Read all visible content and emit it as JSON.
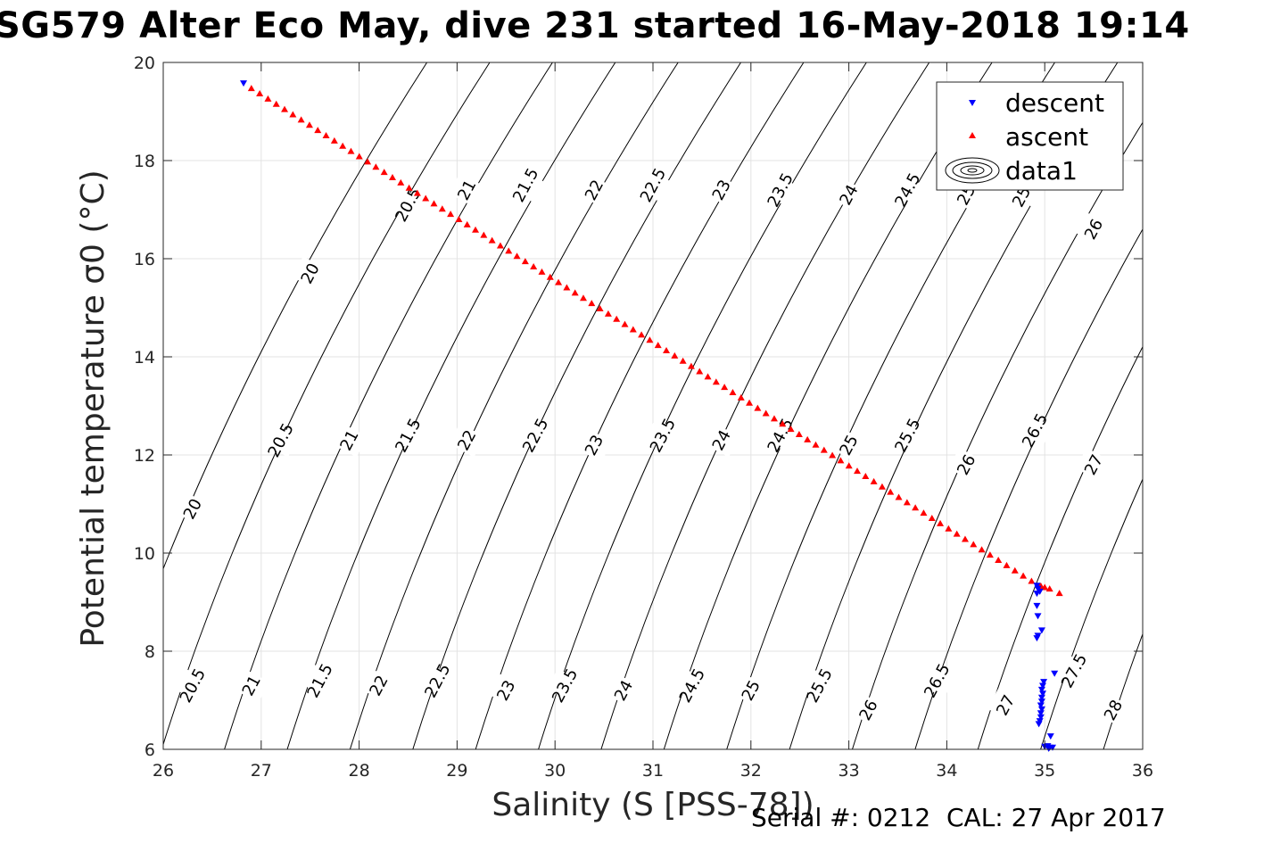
{
  "title": "SG579 Alter Eco May, dive 231 started 16-May-2018 19:14",
  "footer": "Serial #: 0212  CAL: 27 Apr 2017",
  "chart_data": {
    "type": "scatter",
    "title": "SG579 Alter Eco May, dive 231 started 16-May-2018 19:14",
    "xlabel": "Salinity (S [PSS-78])",
    "ylabel": "Potential temperature σ0 (°C)",
    "xlim": [
      26,
      36
    ],
    "ylim": [
      6,
      20
    ],
    "xticks": [
      "26",
      "27",
      "28",
      "29",
      "30",
      "31",
      "32",
      "33",
      "34",
      "35",
      "36"
    ],
    "yticks": [
      "6",
      "8",
      "10",
      "12",
      "14",
      "16",
      "18",
      "20"
    ],
    "grid": true,
    "legend_position": "top-right",
    "legend": [
      "descent",
      "ascent",
      "data1"
    ],
    "contour_levels": [
      20,
      20.5,
      21,
      21.5,
      22,
      22.5,
      23,
      23.5,
      24,
      24.5,
      25,
      25.5,
      26,
      26.5,
      27,
      27.5,
      28
    ],
    "contour_labels": [
      {
        "text": "20",
        "x": 27.5,
        "y": 15.7
      },
      {
        "text": "20.5",
        "x": 28.5,
        "y": 17.1
      },
      {
        "text": "21",
        "x": 29.1,
        "y": 17.4
      },
      {
        "text": "21.5",
        "x": 29.7,
        "y": 17.5
      },
      {
        "text": "22",
        "x": 30.4,
        "y": 17.4
      },
      {
        "text": "22.5",
        "x": 31.0,
        "y": 17.5
      },
      {
        "text": "23",
        "x": 31.7,
        "y": 17.4
      },
      {
        "text": "23.5",
        "x": 32.3,
        "y": 17.4
      },
      {
        "text": "24",
        "x": 33.0,
        "y": 17.3
      },
      {
        "text": "24.5",
        "x": 33.6,
        "y": 17.4
      },
      {
        "text": "25",
        "x": 34.2,
        "y": 17.3
      },
      {
        "text": "25.5",
        "x": 34.8,
        "y": 17.4
      },
      {
        "text": "26",
        "x": 35.5,
        "y": 16.6
      },
      {
        "text": "20",
        "x": 26.3,
        "y": 10.9
      },
      {
        "text": "20.5",
        "x": 27.2,
        "y": 12.3
      },
      {
        "text": "21",
        "x": 27.9,
        "y": 12.3
      },
      {
        "text": "21.5",
        "x": 28.5,
        "y": 12.4
      },
      {
        "text": "22",
        "x": 29.1,
        "y": 12.3
      },
      {
        "text": "22.5",
        "x": 29.8,
        "y": 12.4
      },
      {
        "text": "23",
        "x": 30.4,
        "y": 12.2
      },
      {
        "text": "23.5",
        "x": 31.1,
        "y": 12.4
      },
      {
        "text": "24",
        "x": 31.7,
        "y": 12.3
      },
      {
        "text": "24.5",
        "x": 32.3,
        "y": 12.4
      },
      {
        "text": "25",
        "x": 33.0,
        "y": 12.2
      },
      {
        "text": "25.5",
        "x": 33.6,
        "y": 12.4
      },
      {
        "text": "26",
        "x": 34.2,
        "y": 11.8
      },
      {
        "text": "26.5",
        "x": 34.9,
        "y": 12.5
      },
      {
        "text": "27",
        "x": 35.5,
        "y": 11.8
      },
      {
        "text": "20.5",
        "x": 26.3,
        "y": 7.3
      },
      {
        "text": "21",
        "x": 26.9,
        "y": 7.3
      },
      {
        "text": "21.5",
        "x": 27.6,
        "y": 7.4
      },
      {
        "text": "22",
        "x": 28.2,
        "y": 7.3
      },
      {
        "text": "22.5",
        "x": 28.8,
        "y": 7.4
      },
      {
        "text": "23",
        "x": 29.5,
        "y": 7.2
      },
      {
        "text": "23.5",
        "x": 30.1,
        "y": 7.3
      },
      {
        "text": "24",
        "x": 30.7,
        "y": 7.2
      },
      {
        "text": "24.5",
        "x": 31.4,
        "y": 7.3
      },
      {
        "text": "25",
        "x": 32.0,
        "y": 7.2
      },
      {
        "text": "25.5",
        "x": 32.7,
        "y": 7.3
      },
      {
        "text": "26",
        "x": 33.2,
        "y": 6.8
      },
      {
        "text": "26.5",
        "x": 33.9,
        "y": 7.4
      },
      {
        "text": "27",
        "x": 34.6,
        "y": 6.9
      },
      {
        "text": "27.5",
        "x": 35.3,
        "y": 7.6
      },
      {
        "text": "28",
        "x": 35.7,
        "y": 6.8
      }
    ],
    "series": [
      {
        "name": "descent",
        "color": "#0000ff",
        "marker": "triangle-down",
        "points": [
          [
            26.82,
            19.58
          ],
          [
            34.92,
            9.34
          ],
          [
            34.93,
            9.28
          ],
          [
            34.95,
            9.22
          ],
          [
            34.92,
            9.18
          ],
          [
            34.92,
            8.93
          ],
          [
            34.93,
            8.72
          ],
          [
            34.97,
            8.43
          ],
          [
            34.93,
            8.32
          ],
          [
            34.92,
            8.27
          ],
          [
            35.1,
            7.55
          ],
          [
            34.99,
            7.38
          ],
          [
            34.98,
            7.3
          ],
          [
            34.97,
            7.22
          ],
          [
            34.98,
            7.14
          ],
          [
            34.97,
            7.06
          ],
          [
            34.97,
            6.98
          ],
          [
            34.96,
            6.9
          ],
          [
            34.97,
            6.82
          ],
          [
            34.96,
            6.74
          ],
          [
            34.96,
            6.66
          ],
          [
            34.95,
            6.58
          ],
          [
            34.94,
            6.52
          ],
          [
            35.06,
            6.27
          ],
          [
            35.03,
            6.07
          ],
          [
            35.05,
            6.04
          ],
          [
            35.08,
            6.04
          ],
          [
            35.0,
            6.06
          ],
          [
            35.04,
            6.02
          ]
        ]
      },
      {
        "name": "ascent",
        "color": "#ff0000",
        "marker": "triangle-up",
        "x_start": 26.9,
        "x_end": 34.95,
        "y_start": 19.47,
        "y_end": 9.32,
        "count": 96,
        "extra_points": [
          [
            34.96,
            9.33
          ],
          [
            35.0,
            9.3
          ],
          [
            35.05,
            9.27
          ],
          [
            35.15,
            9.18
          ]
        ]
      }
    ]
  }
}
